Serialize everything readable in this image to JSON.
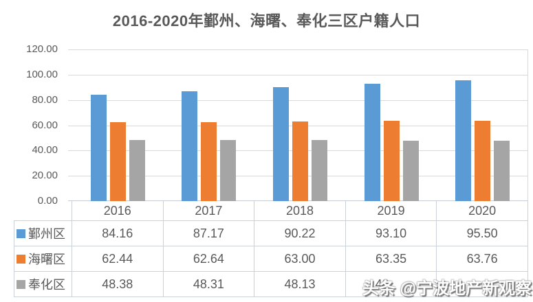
{
  "title": "2016-2020年鄞州、海曙、奉化三区户籍人口",
  "watermark": "头条 @宁波地产新观察",
  "colors": {
    "series_blue": "#5B9BD5",
    "series_orange": "#ED7D31",
    "series_gray": "#A5A5A5",
    "text": "#595959",
    "gridline": "#D9D9D9",
    "table_border": "#CBD1D9",
    "background": "#FFFFFF"
  },
  "chart_data": {
    "type": "bar",
    "title": "2016-2020年鄞州、海曙、奉化三区户籍人口",
    "categories": [
      "2016",
      "2017",
      "2018",
      "2019",
      "2020"
    ],
    "series": [
      {
        "name": "鄞州区",
        "slug": "yinzhou",
        "color": "#5B9BD5",
        "values": [
          84.16,
          87.17,
          90.22,
          93.1,
          95.5
        ]
      },
      {
        "name": "海曙区",
        "slug": "haishu",
        "color": "#ED7D31",
        "values": [
          62.44,
          62.64,
          63.0,
          63.35,
          63.76
        ]
      },
      {
        "name": "奉化区",
        "slug": "fenghua",
        "color": "#A5A5A5",
        "values": [
          48.38,
          48.31,
          48.13,
          48.0,
          47.9
        ]
      }
    ],
    "xlabel": "",
    "ylabel": "",
    "ylim": [
      0,
      120
    ],
    "ytick_step": 20,
    "yticks": [
      "120.00",
      "100.00",
      "80.00",
      "60.00",
      "40.00",
      "20.00",
      "0.00"
    ],
    "grid": true,
    "legend_position": "data-table-row-headers"
  },
  "data_table": {
    "columns": [
      "2016",
      "2017",
      "2018",
      "2019",
      "2020"
    ],
    "rows": [
      {
        "label": "鄞州区",
        "slug": "yinzhou",
        "swatch": "#5B9BD5",
        "cells": [
          "84.16",
          "87.17",
          "90.22",
          "93.10",
          "95.50"
        ]
      },
      {
        "label": "海曙区",
        "slug": "haishu",
        "swatch": "#ED7D31",
        "cells": [
          "62.44",
          "62.64",
          "63.00",
          "63.35",
          "63.76"
        ]
      },
      {
        "label": "奉化区",
        "slug": "fenghua",
        "swatch": "#A5A5A5",
        "cells": [
          "48.38",
          "48.31",
          "48.13",
          "48",
          ""
        ]
      }
    ]
  }
}
